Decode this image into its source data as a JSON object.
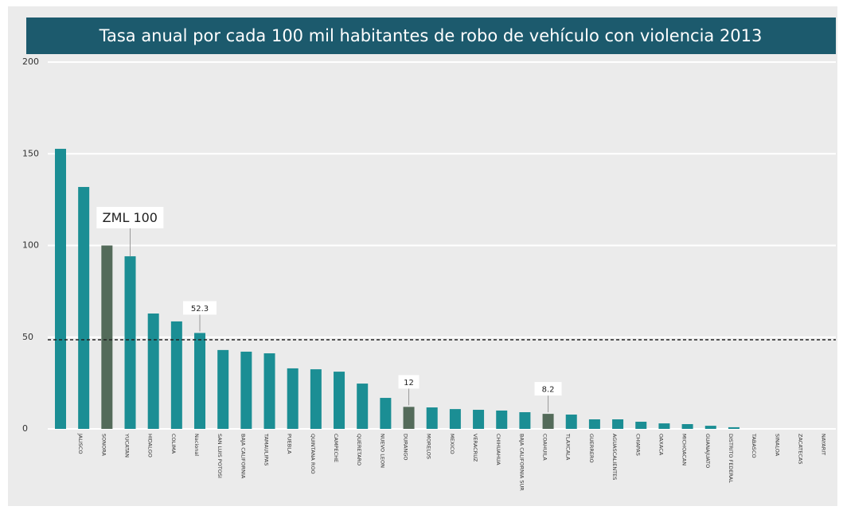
{
  "chart_data": {
    "type": "bar",
    "title": "Tasa anual por cada 100 mil habitantes de robo de vehículo con violencia 2013",
    "categories": [
      null,
      "JALISCO",
      "SONORA",
      "YUCATAN",
      "HIDALGO",
      "COLIMA",
      "Nacional",
      "SAN LUIS POTOSI",
      "BAJA CALIFORNIA",
      "TAMAULIPAS",
      "PUEBLA",
      "QUINTANA ROO",
      "CAMPECHE",
      "QUERETARO",
      "NUEVO LEON",
      "DURANGO",
      "MORELOS",
      "MEXICO",
      "VERACRUZ",
      "CHIHUAHUA",
      "BAJA CALIFORNIA SUR",
      "COAHUILA",
      "TLAXCALA",
      "GUERRERO",
      "AGUASCALIENTES",
      "CHIAPAS",
      "OAXACA",
      "MICHOACAN",
      "GUANAJUATO",
      "DISTRITO FEDERAL",
      "TABASCO",
      "SINALOA",
      "ZACATECAS",
      "NAYARIT"
    ],
    "values": [
      152.7,
      131.9,
      100,
      94.1,
      62.9,
      58.6,
      52.3,
      43,
      42.1,
      41.2,
      33,
      32.5,
      31.2,
      24.7,
      16.9,
      12,
      11.7,
      10.8,
      10.4,
      10,
      9.1,
      8.2,
      7.8,
      5.2,
      5.2,
      3.9,
      3,
      2.6,
      1.7,
      0.9,
      0,
      0,
      0,
      0
    ],
    "value_labels": [
      null,
      null,
      "ZML 100",
      null,
      null,
      null,
      "52.3",
      null,
      null,
      null,
      null,
      null,
      null,
      null,
      null,
      "12",
      null,
      null,
      null,
      null,
      null,
      "8.2",
      null,
      null,
      null,
      null,
      null,
      null,
      null,
      null,
      null,
      null,
      null,
      null
    ],
    "colors": [
      "#1b8e94",
      "#1b8e94",
      "#546b5a",
      "#1b8e94",
      "#1b8e94",
      "#1b8e94",
      "#1b8e94",
      "#1b8e94",
      "#1b8e94",
      "#1b8e94",
      "#1b8e94",
      "#1b8e94",
      "#1b8e94",
      "#1b8e94",
      "#1b8e94",
      "#546b5a",
      "#1b8e94",
      "#1b8e94",
      "#1b8e94",
      "#1b8e94",
      "#1b8e94",
      "#546b5a",
      "#1b8e94",
      "#1b8e94",
      "#1b8e94",
      "#1b8e94",
      "#1b8e94",
      "#1b8e94",
      "#1b8e94",
      "#1b8e94",
      "#1b8e94",
      "#1b8e94",
      "#1b8e94",
      "#1b8e94"
    ],
    "reference_line": 48.6,
    "ylim": [
      0,
      200
    ],
    "yticks": [
      0,
      50,
      100,
      150,
      200
    ],
    "grid": true
  }
}
